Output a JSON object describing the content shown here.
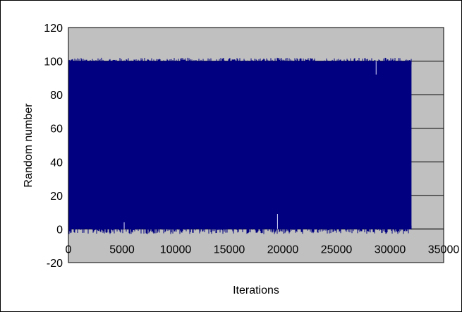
{
  "chart_data": {
    "type": "line",
    "title": "",
    "xlabel": "Iterations",
    "ylabel": "Random  number",
    "xlim": [
      0,
      35000
    ],
    "ylim": [
      -20,
      120
    ],
    "x_ticks": [
      "0",
      "5000",
      "10000",
      "15000",
      "20000",
      "25000",
      "30000",
      "35000"
    ],
    "y_ticks": [
      "120",
      "100",
      "80",
      "60",
      "40",
      "20",
      "0",
      "-20"
    ],
    "grid": "horizontal",
    "legend": "none",
    "series": [
      {
        "points": 32000,
        "x_range": [
          0,
          32000
        ],
        "value_range": [
          0,
          100
        ],
        "noise_range": [
          -3,
          102
        ],
        "color": "#000080"
      }
    ],
    "colors": {
      "plot_background": "#c0c0c0",
      "series": "#000080",
      "gridline": "#000000"
    }
  }
}
